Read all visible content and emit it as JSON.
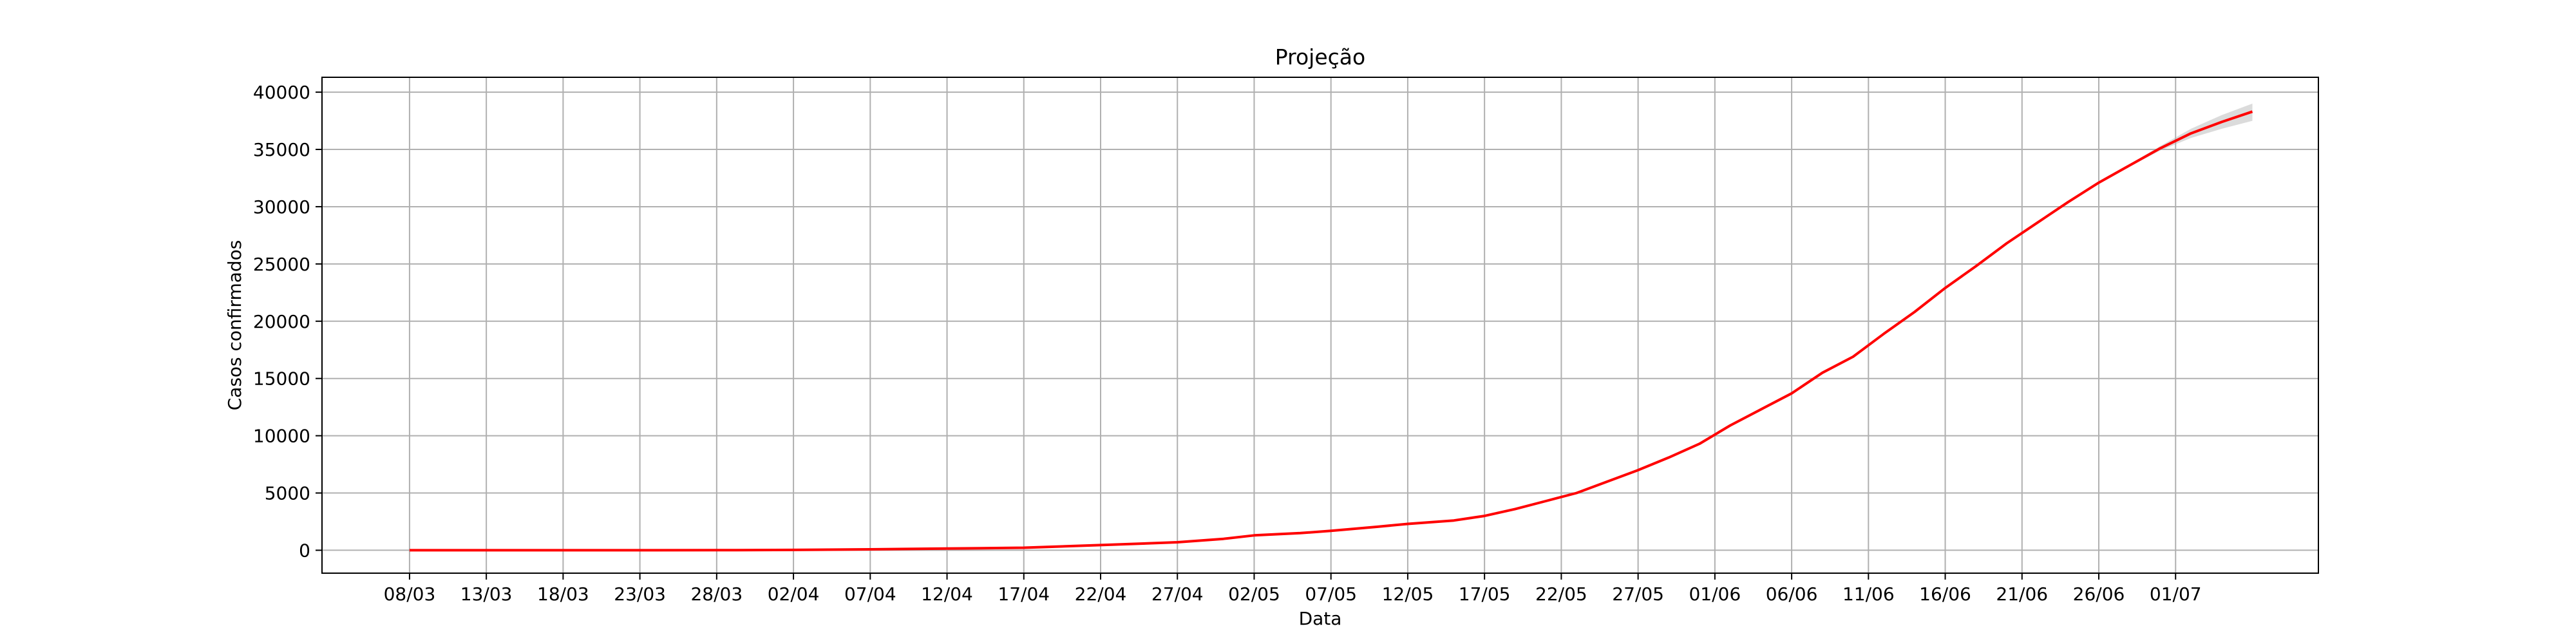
{
  "chart_data": {
    "type": "line",
    "title": "Projeção",
    "xlabel": "Data",
    "ylabel": "Casos confirmados",
    "grid": true,
    "x_start": "08/03",
    "x_ticks": [
      "08/03",
      "13/03",
      "18/03",
      "23/03",
      "28/03",
      "02/04",
      "07/04",
      "12/04",
      "17/04",
      "22/04",
      "27/04",
      "02/05",
      "07/05",
      "12/05",
      "17/05",
      "22/05",
      "27/05",
      "01/06",
      "06/06",
      "11/06",
      "16/06",
      "21/06",
      "26/06",
      "01/07"
    ],
    "y_ticks": [
      "0",
      "5000",
      "10000",
      "15000",
      "20000",
      "25000",
      "30000",
      "35000",
      "40000"
    ],
    "xlim_days": [
      -5.7,
      124.3
    ],
    "ylim": [
      -2000,
      41300
    ],
    "series": [
      {
        "color": "#ff0000",
        "x_days": [
          0,
          10,
          20,
          25,
          30,
          35,
          40,
          45,
          50,
          53,
          55,
          58,
          60,
          63,
          65,
          68,
          70,
          72,
          74,
          76,
          78,
          80,
          82,
          84,
          86,
          88,
          90,
          92,
          94,
          96,
          98,
          100,
          102,
          104,
          106,
          108,
          110,
          112,
          114,
          116,
          118,
          120
        ],
        "y": [
          0,
          0,
          5,
          30,
          80,
          150,
          220,
          450,
          700,
          1000,
          1300,
          1500,
          1700,
          2050,
          2300,
          2600,
          3000,
          3600,
          4300,
          5000,
          6000,
          7000,
          8100,
          9300,
          10900,
          12300,
          13700,
          15500,
          16900,
          18900,
          20800,
          22900,
          24800,
          26800,
          28600,
          30400,
          32100,
          33600,
          35100,
          36400,
          37400,
          38300
        ]
      }
    ],
    "confidence_band": {
      "color": "#b0b0b0",
      "x_days": [
        112,
        114,
        116,
        118,
        120
      ],
      "lower": [
        33500,
        34900,
        36000,
        36800,
        37500
      ],
      "upper": [
        33700,
        35300,
        36800,
        38000,
        39000
      ]
    }
  }
}
